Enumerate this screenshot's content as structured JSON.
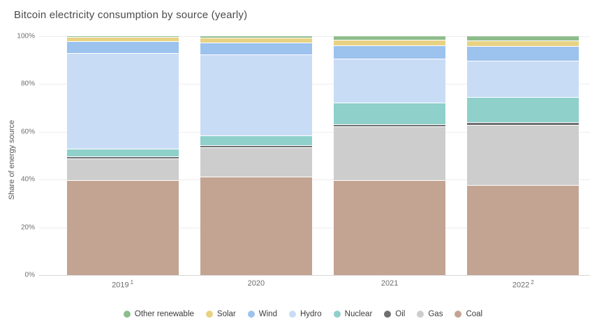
{
  "chart": {
    "title": "Bitcoin electricity consumption by source (yearly)",
    "y_axis_title": "Share of energy source",
    "colors": {
      "background": "#ffffff",
      "title_text": "#4a4a4a",
      "axis_text": "#6f6f6f",
      "gridline": "#ededed",
      "segment_separator": "#ffffff"
    }
  },
  "chart_data": {
    "type": "bar",
    "stacked": true,
    "stacked_to_100_percent": true,
    "title": "Bitcoin electricity consumption by source (yearly)",
    "xlabel": "",
    "ylabel": "Share of energy source",
    "ylim": [
      0,
      100
    ],
    "y_ticks": [
      0,
      20,
      40,
      60,
      80,
      100
    ],
    "y_tick_suffix": "%",
    "grid": true,
    "legend_position": "bottom",
    "categories": [
      "2019",
      "2020",
      "2021",
      "2022"
    ],
    "category_footnotes": [
      "1",
      "",
      "",
      "2"
    ],
    "series_order_note": "listed top-of-stack first; legend shows same order left to right",
    "series": [
      {
        "name": "Other renewable",
        "color": "#8ebd8b",
        "values": [
          0.5,
          1.0,
          1.8,
          2.1
        ]
      },
      {
        "name": "Solar",
        "color": "#e8d283",
        "values": [
          1.7,
          1.9,
          2.2,
          2.4
        ]
      },
      {
        "name": "Wind",
        "color": "#9cc2ee",
        "values": [
          5.0,
          5.0,
          5.7,
          6.1
        ]
      },
      {
        "name": "Hydro",
        "color": "#c9dcf5",
        "values": [
          40.1,
          33.9,
          18.5,
          15.0
        ]
      },
      {
        "name": "Nuclear",
        "color": "#8fd0cb",
        "values": [
          3.3,
          4.0,
          8.9,
          10.8
        ]
      },
      {
        "name": "Oil",
        "color": "#6d6e70",
        "values": [
          1.0,
          0.9,
          1.0,
          1.0
        ]
      },
      {
        "name": "Gas",
        "color": "#cdcdcd",
        "values": [
          8.9,
          12.5,
          22.4,
          25.3
        ]
      },
      {
        "name": "Coal",
        "color": "#c3a492",
        "values": [
          39.5,
          40.8,
          39.5,
          37.3
        ]
      }
    ]
  }
}
